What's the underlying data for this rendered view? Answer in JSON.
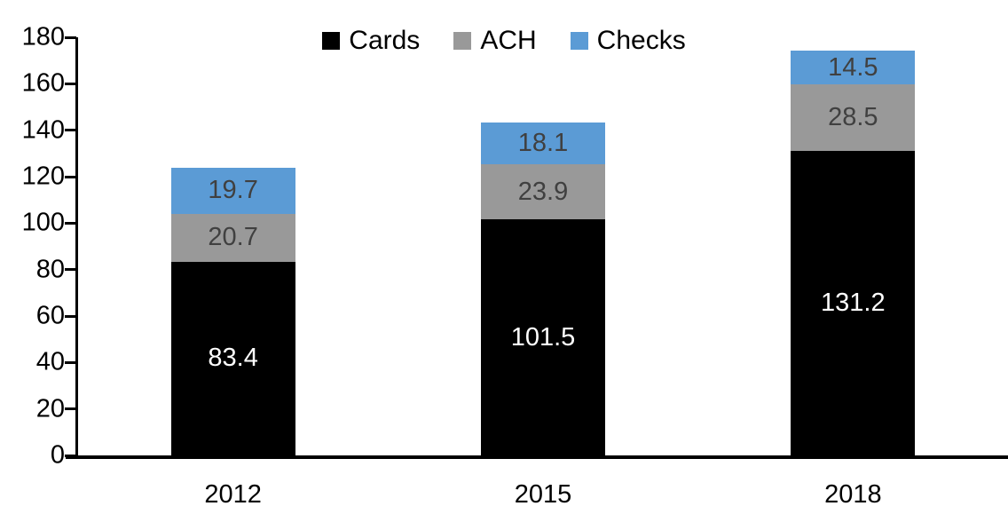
{
  "chart_data": {
    "type": "bar",
    "stacked": true,
    "title": "",
    "categories": [
      "2012",
      "2015",
      "2018"
    ],
    "series": [
      {
        "name": "Cards",
        "color": "#000000",
        "label_color": "#ffffff",
        "values": [
          83.4,
          101.5,
          131.2
        ]
      },
      {
        "name": "ACH",
        "color": "#999999",
        "label_color": "#404040",
        "values": [
          20.7,
          23.9,
          28.5
        ]
      },
      {
        "name": "Checks",
        "color": "#5b9bd5",
        "label_color": "#404040",
        "values": [
          19.7,
          18.1,
          14.5
        ]
      }
    ],
    "totals": [
      123.8,
      143.5,
      174.2
    ],
    "ylim": [
      0,
      180
    ],
    "yticks": [
      0,
      20,
      40,
      60,
      80,
      100,
      120,
      140,
      160,
      180
    ],
    "xlabel": "",
    "ylabel": "",
    "grid": false,
    "legend_position": "top",
    "axis_color": "#000000"
  }
}
